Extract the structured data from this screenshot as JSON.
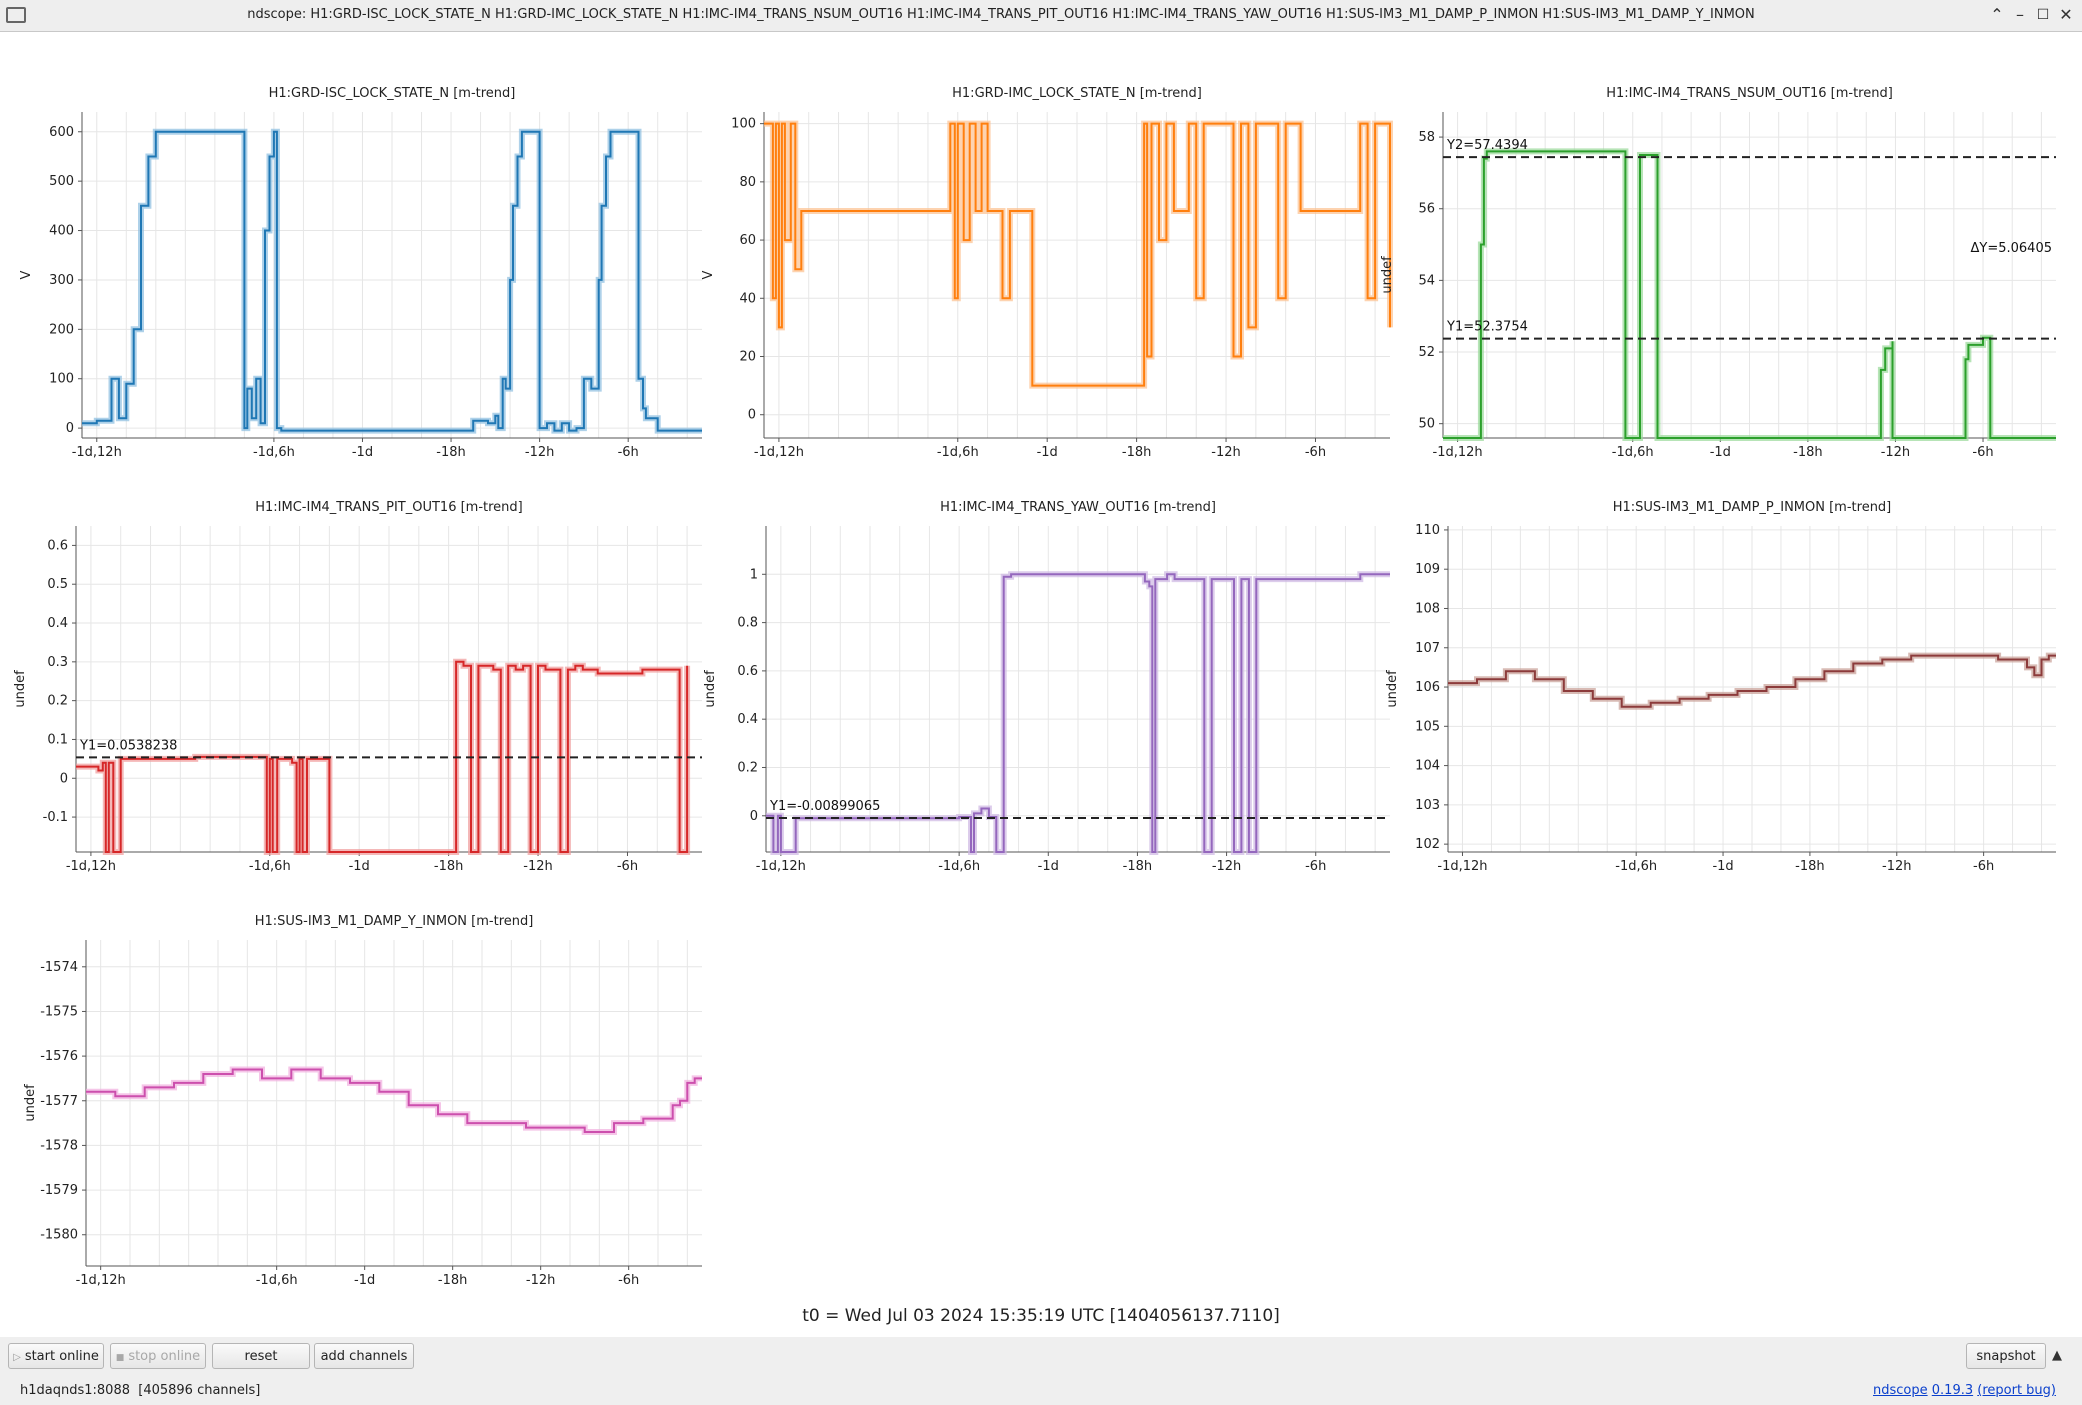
{
  "window": {
    "title": "ndscope: H1:GRD-ISC_LOCK_STATE_N H1:GRD-IMC_LOCK_STATE_N H1:IMC-IM4_TRANS_NSUM_OUT16 H1:IMC-IM4_TRANS_PIT_OUT16 H1:IMC-IM4_TRANS_YAW_OUT16 H1:SUS-IM3_M1_DAMP_P_INMON H1:SUS-IM3_M1_DAMP_Y_INMON",
    "minimize": "⌃",
    "maximize": "–",
    "restore": "☐",
    "close": "✕"
  },
  "colors": {
    "grid": "#e6e6e6",
    "axis": "#555555",
    "cursor": "#222222"
  },
  "chart_data": [
    {
      "type": "line",
      "title": "H1:GRD-ISC_LOCK_STATE_N [m-trend]",
      "ylabel": "V",
      "color": "#1f77b4",
      "band_color": "#8bbde0",
      "x_ticks": [
        "-1d,12h",
        "-1d,6h",
        "-1d",
        "-18h",
        "-12h",
        "-6h"
      ],
      "y_ticks": [
        0,
        100,
        200,
        300,
        400,
        500,
        600
      ],
      "ylim": [
        -20,
        640
      ],
      "series": [
        {
          "x": [
            -43,
            -42,
            -41,
            -40.5,
            -40,
            -39.5,
            -39,
            -38.5,
            -38,
            -37,
            -36,
            -35,
            -34,
            -33,
            -32.5,
            -32,
            -31.8,
            -31.5,
            -31.2,
            -30.9,
            -30.6,
            -30.3,
            -30,
            -29.8,
            -29.5,
            -29,
            -28,
            -27,
            -26,
            -25,
            -24,
            -23,
            -22,
            -21,
            -20,
            -19,
            -18,
            -17,
            -16.5,
            -16,
            -15.5,
            -15,
            -14.8,
            -14.5,
            -14.3,
            -14,
            -13.8,
            -13.5,
            -13.2,
            -13,
            -12.5,
            -12,
            -11.5,
            -11,
            -10.5,
            -10,
            -9.5,
            -9,
            -8.5,
            -8,
            -7.8,
            -7.5,
            -7.2,
            -7,
            -6.8,
            -6.5,
            -6,
            -5.8,
            -5.5,
            -5.3,
            -5,
            -4.8,
            -4.5,
            -4,
            -3,
            -2,
            -1.5,
            -1
          ],
          "y": [
            10,
            15,
            100,
            20,
            90,
            200,
            450,
            550,
            600,
            600,
            600,
            600,
            600,
            600,
            600,
            0,
            80,
            20,
            100,
            10,
            400,
            550,
            600,
            0,
            -5,
            -5,
            -5,
            -5,
            -5,
            -5,
            -5,
            -5,
            -5,
            -5,
            -5,
            -5,
            -5,
            -5,
            15,
            15,
            10,
            25,
            0,
            100,
            80,
            300,
            450,
            550,
            600,
            600,
            600,
            0,
            10,
            -5,
            10,
            -5,
            0,
            100,
            80,
            300,
            450,
            550,
            600,
            600,
            600,
            600,
            600,
            600,
            600,
            100,
            40,
            20,
            20,
            -5,
            -5,
            -5,
            -5,
            -5
          ]
        }
      ]
    },
    {
      "type": "line",
      "title": "H1:GRD-IMC_LOCK_STATE_N [m-trend]",
      "ylabel": "V",
      "color": "#ff7f0e",
      "band_color": "#fcc08e",
      "x_ticks": [
        "-1d,12h",
        "-1d,6h",
        "-1d",
        "-18h",
        "-12h",
        "-6h"
      ],
      "y_ticks": [
        0,
        20,
        40,
        60,
        80,
        100
      ],
      "ylim": [
        -8,
        104
      ],
      "series": [
        {
          "x": [
            -43,
            -42.6,
            -42.4,
            -42.2,
            -42,
            -41.8,
            -41.6,
            -41.2,
            -40.9,
            -40.5,
            -40,
            -38,
            -36,
            -34,
            -32,
            -30.5,
            -30.2,
            -30,
            -29.6,
            -29.2,
            -28.8,
            -28.4,
            -28,
            -27.5,
            -27,
            -26.5,
            -25,
            -20,
            -18,
            -17.5,
            -17.3,
            -17,
            -16.8,
            -16.5,
            -16,
            -15.5,
            -15,
            -14.5,
            -14,
            -13.5,
            -13,
            -12,
            -11.5,
            -11,
            -10.5,
            -10,
            -9.5,
            -9,
            -8.5,
            -8,
            -7.5,
            -7,
            -6.5,
            -6,
            -5,
            -4,
            -3.5,
            -3,
            -2.5,
            -2,
            -1
          ],
          "y": [
            100,
            100,
            40,
            100,
            30,
            100,
            60,
            100,
            50,
            70,
            70,
            70,
            70,
            70,
            70,
            100,
            40,
            100,
            60,
            100,
            70,
            100,
            70,
            70,
            40,
            70,
            10,
            10,
            10,
            100,
            20,
            100,
            100,
            60,
            100,
            70,
            70,
            100,
            40,
            100,
            100,
            100,
            20,
            100,
            30,
            100,
            100,
            100,
            40,
            100,
            100,
            70,
            70,
            70,
            70,
            70,
            70,
            100,
            40,
            100,
            30
          ]
        }
      ]
    },
    {
      "type": "line",
      "title": "H1:IMC-IM4_TRANS_NSUM_OUT16 [m-trend]",
      "ylabel": "undef",
      "color": "#2ca02c",
      "band_color": "#98d898",
      "x_ticks": [
        "-1d,12h",
        "-1d,6h",
        "-1d",
        "-18h",
        "-12h",
        "-6h"
      ],
      "y_ticks": [
        50,
        52,
        54,
        56,
        58
      ],
      "ylim": [
        49.6,
        58.7
      ],
      "cursors": {
        "y1": "Y1=52.3754",
        "y1_value": 52.3754,
        "y2": "Y2=57.4394",
        "y2_value": 57.4394,
        "delta": "ΔY=5.06405"
      },
      "series": [
        {
          "x": [
            -43,
            -40.5,
            -40.4,
            -40.2,
            -40,
            -39,
            -37,
            -35,
            -33,
            -31,
            -30.5,
            -30.5,
            -29.5,
            -29.5,
            -28.3,
            -28.3,
            -27.8,
            -27.8,
            -26,
            -20,
            -14,
            -13.2,
            -13,
            -12.7,
            -12.2,
            -12.2,
            -8,
            -7.5,
            -7.2,
            -7,
            -6,
            -5.5,
            -5.5,
            -1
          ],
          "y": [
            49.6,
            49.6,
            55,
            57.4,
            57.6,
            57.6,
            57.6,
            57.6,
            57.6,
            57.6,
            57.6,
            49.6,
            49.6,
            57.5,
            57.5,
            49.6,
            49.6,
            49.6,
            49.6,
            49.6,
            49.6,
            49.6,
            51.5,
            52.1,
            52.3,
            49.6,
            49.6,
            49.6,
            51.8,
            52.2,
            52.4,
            52.4,
            49.6,
            49.6
          ]
        }
      ]
    },
    {
      "type": "line",
      "title": "H1:IMC-IM4_TRANS_PIT_OUT16 [m-trend]",
      "ylabel": "undef",
      "color": "#d62728",
      "band_color": "#f09a9a",
      "x_ticks": [
        "-1d,12h",
        "-1d,6h",
        "-1d",
        "-18h",
        "-12h",
        "-6h"
      ],
      "y_ticks": [
        -0.1,
        0,
        0.1,
        0.2,
        0.3,
        0.4,
        0.5,
        0.6
      ],
      "ylim": [
        -0.19,
        0.65
      ],
      "cursors": {
        "y1": "Y1=0.0538238",
        "y1_value": 0.0538238
      },
      "series": [
        {
          "x": [
            -43,
            -42,
            -41.5,
            -41.2,
            -41,
            -40.8,
            -40.5,
            -40,
            -39,
            -37,
            -35,
            -33,
            -31,
            -30.5,
            -30.2,
            -30,
            -29.8,
            -29.5,
            -29,
            -28.5,
            -28.2,
            -28,
            -27.8,
            -27.5,
            -26,
            -24,
            -22,
            -20,
            -19,
            -18,
            -17.5,
            -17,
            -16.8,
            -16.5,
            -16,
            -15.5,
            -15,
            -14.8,
            -14.5,
            -14,
            -13.5,
            -13,
            -12.5,
            -12,
            -11.5,
            -11,
            -10.5,
            -10,
            -9.5,
            -9,
            -8,
            -7,
            -6,
            -5,
            -4,
            -3.5,
            -3,
            -2.5,
            -2
          ],
          "y": [
            0.03,
            0.03,
            0.02,
            0.04,
            -0.19,
            0.04,
            -0.19,
            0.05,
            0.05,
            0.05,
            0.055,
            0.055,
            0.055,
            0.055,
            -0.19,
            0.05,
            -0.19,
            0.05,
            0.05,
            0.04,
            -0.19,
            0.05,
            -0.19,
            0.05,
            -0.19,
            -0.19,
            -0.19,
            -0.19,
            -0.19,
            -0.19,
            0.3,
            0.29,
            0.29,
            -0.19,
            0.29,
            0.29,
            0.28,
            0.28,
            -0.19,
            0.29,
            0.28,
            0.29,
            -0.19,
            0.29,
            0.28,
            0.28,
            -0.19,
            0.28,
            0.29,
            0.28,
            0.27,
            0.27,
            0.27,
            0.28,
            0.28,
            0.28,
            0.28,
            -0.19,
            0.29
          ]
        }
      ]
    },
    {
      "type": "line",
      "title": "H1:IMC-IM4_TRANS_YAW_OUT16 [m-trend]",
      "ylabel": "undef",
      "color": "#9467bd",
      "band_color": "#cdb6e3",
      "x_ticks": [
        "-1d,12h",
        "-1d,6h",
        "-1d",
        "-18h",
        "-12h",
        "-6h"
      ],
      "y_ticks": [
        0,
        0.2,
        0.4,
        0.6,
        0.8,
        1
      ],
      "ylim": [
        -0.15,
        1.2
      ],
      "cursors": {
        "y1": "Y1=-0.00899065",
        "y1_value": -0.00899065
      },
      "series": [
        {
          "x": [
            -43,
            -42.5,
            -42.2,
            -42,
            -41,
            -38,
            -35,
            -32,
            -30,
            -29.5,
            -29.2,
            -29,
            -28.5,
            -28,
            -27.5,
            -27,
            -26.8,
            -26.5,
            -26,
            -25.5,
            -25,
            -24,
            -22,
            -20,
            -18,
            -17.5,
            -17.2,
            -17,
            -16.8,
            -16.5,
            -16,
            -15.5,
            -15,
            -14.5,
            -14,
            -13.5,
            -13,
            -12.5,
            -12,
            -11.5,
            -11,
            -10.5,
            -10,
            -9.5,
            -9,
            -8.5,
            -8,
            -7.5,
            -7,
            -6,
            -5,
            -4,
            -3.5,
            -3,
            -2.5,
            -2,
            -1
          ],
          "y": [
            0,
            -0.15,
            0,
            -0.15,
            -0.01,
            -0.01,
            -0.01,
            -0.01,
            -0.005,
            -0.005,
            -0.15,
            0.01,
            0.03,
            -0.005,
            -0.15,
            0.99,
            0.99,
            1,
            1,
            1,
            1,
            1,
            1,
            1,
            1,
            0.97,
            0.95,
            -0.15,
            0.98,
            0.98,
            1,
            0.98,
            0.98,
            0.98,
            0.98,
            -0.15,
            0.98,
            0.98,
            0.98,
            -0.15,
            0.98,
            -0.15,
            0.98,
            0.98,
            0.98,
            0.98,
            0.98,
            0.98,
            0.98,
            0.98,
            0.98,
            0.98,
            0.98,
            1,
            1,
            1,
            1
          ]
        }
      ]
    },
    {
      "type": "line",
      "title": "H1:SUS-IM3_M1_DAMP_P_INMON [m-trend]",
      "ylabel": "undef",
      "color": "#8c3b3b",
      "band_color": "#c79e96",
      "x_ticks": [
        "-1d,12h",
        "-1d,6h",
        "-1d",
        "-18h",
        "-12h",
        "-6h"
      ],
      "y_ticks": [
        102,
        103,
        104,
        105,
        106,
        107,
        108,
        109,
        110
      ],
      "ylim": [
        101.8,
        110.1
      ],
      "series": [
        {
          "x": [
            -43,
            -41,
            -39,
            -37,
            -35,
            -33,
            -31,
            -29,
            -27,
            -25,
            -23,
            -21,
            -19,
            -17,
            -15,
            -13,
            -11,
            -9,
            -7,
            -5,
            -3,
            -2.5,
            -2,
            -1.5,
            -1
          ],
          "y": [
            106.1,
            106.2,
            106.4,
            106.2,
            105.9,
            105.7,
            105.5,
            105.6,
            105.7,
            105.8,
            105.9,
            106.0,
            106.2,
            106.4,
            106.6,
            106.7,
            106.8,
            106.8,
            106.8,
            106.7,
            106.5,
            106.3,
            106.7,
            106.8,
            106.8
          ]
        }
      ]
    },
    {
      "type": "line",
      "title": "H1:SUS-IM3_M1_DAMP_Y_INMON [m-trend]",
      "ylabel": "undef",
      "color": "#cc4fad",
      "band_color": "#f1aede",
      "x_ticks": [
        "-1d,12h",
        "-1d,6h",
        "-1d",
        "-18h",
        "-12h",
        "-6h"
      ],
      "y_ticks": [
        -1580,
        -1579,
        -1578,
        -1577,
        -1576,
        -1575,
        -1574
      ],
      "ylim": [
        -1580.7,
        -1573.4
      ],
      "series": [
        {
          "x": [
            -43,
            -41,
            -39,
            -37,
            -35,
            -33,
            -31,
            -29,
            -27,
            -25,
            -23,
            -21,
            -19,
            -17,
            -15,
            -13,
            -11,
            -9,
            -7,
            -5,
            -3,
            -2.5,
            -2,
            -1.5,
            -1
          ],
          "y": [
            -1576.8,
            -1576.9,
            -1576.7,
            -1576.6,
            -1576.4,
            -1576.3,
            -1576.5,
            -1576.3,
            -1576.5,
            -1576.6,
            -1576.8,
            -1577.1,
            -1577.3,
            -1577.5,
            -1577.5,
            -1577.6,
            -1577.6,
            -1577.7,
            -1577.5,
            -1577.4,
            -1577.1,
            -1577.0,
            -1576.6,
            -1576.5,
            -1576.5
          ]
        }
      ]
    }
  ],
  "t0_label": "t0 = Wed Jul 03 2024 15:35:19 UTC [1404056137.7110]",
  "buttons": {
    "start_online": "start online",
    "stop_online": "stop online",
    "reset": "reset",
    "add_channels": "add channels",
    "snapshot": "snapshot",
    "expand": "▲"
  },
  "status": {
    "server": "h1daqnds1:8088  [405896 channels]",
    "ndscope": "ndscope",
    "version": "0.19.3",
    "report": "(report bug)"
  }
}
